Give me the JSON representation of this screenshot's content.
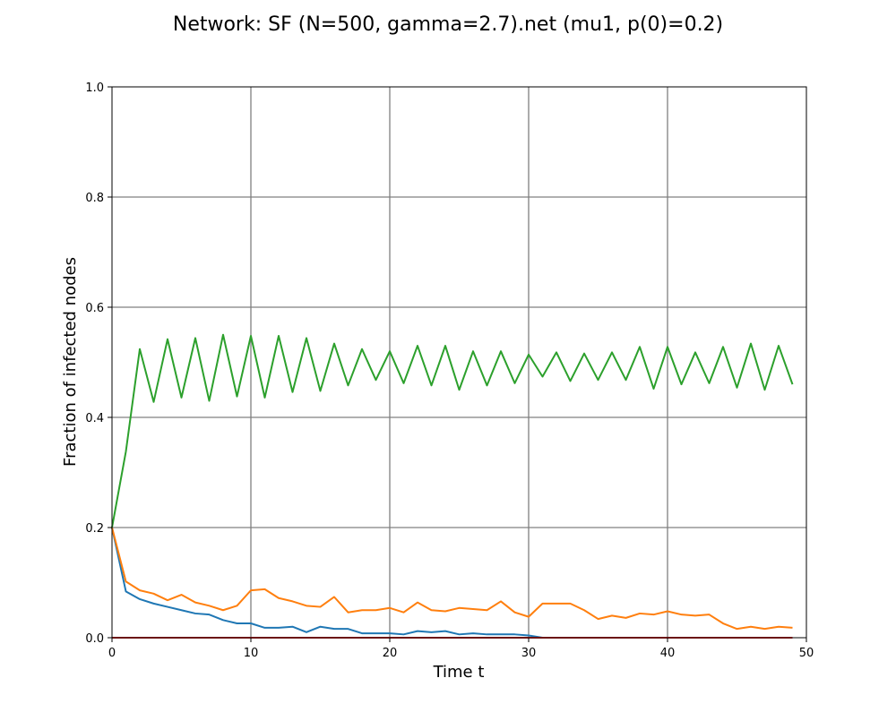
{
  "chart_data": {
    "type": "line",
    "title": "Network: SF (N=500, gamma=2.7).net (mu1, p(0)=0.2)",
    "xlabel": "Time t",
    "ylabel": "Fraction of infected nodes",
    "xlim": [
      0,
      50
    ],
    "ylim": [
      0,
      1.0
    ],
    "xticks": [
      0,
      10,
      20,
      30,
      40,
      50
    ],
    "yticks": [
      0.0,
      0.2,
      0.4,
      0.6,
      0.8,
      1.0
    ],
    "xtick_labels": [
      "0",
      "10",
      "20",
      "30",
      "40",
      "50"
    ],
    "ytick_labels": [
      "0.0",
      "0.2",
      "0.4",
      "0.6",
      "0.8",
      "1.0"
    ],
    "grid": true,
    "grid_color": "#808080",
    "x": [
      0,
      1,
      2,
      3,
      4,
      5,
      6,
      7,
      8,
      9,
      10,
      11,
      12,
      13,
      14,
      15,
      16,
      17,
      18,
      19,
      20,
      21,
      22,
      23,
      24,
      25,
      26,
      27,
      28,
      29,
      30,
      31,
      32,
      33,
      34,
      35,
      36,
      37,
      38,
      39,
      40,
      41,
      42,
      43,
      44,
      45,
      46,
      47,
      48,
      49
    ],
    "series": [
      {
        "color": "#1f77b4",
        "values": [
          0.2,
          0.084,
          0.07,
          0.062,
          0.056,
          0.05,
          0.044,
          0.042,
          0.032,
          0.026,
          0.026,
          0.018,
          0.018,
          0.02,
          0.01,
          0.02,
          0.016,
          0.016,
          0.008,
          0.008,
          0.008,
          0.006,
          0.012,
          0.01,
          0.012,
          0.006,
          0.008,
          0.006,
          0.006,
          0.006,
          0.004,
          0.0,
          0.0,
          0.0,
          0.0,
          0.0,
          0.0,
          0.0,
          0.0,
          0.0,
          0.0,
          0.0,
          0.0,
          0.0,
          0.0,
          0.0,
          0.0,
          0.0,
          0.0,
          0.0
        ]
      },
      {
        "color": "#ff7f0e",
        "values": [
          0.2,
          0.102,
          0.086,
          0.08,
          0.068,
          0.078,
          0.064,
          0.058,
          0.05,
          0.058,
          0.086,
          0.088,
          0.072,
          0.066,
          0.058,
          0.056,
          0.074,
          0.046,
          0.05,
          0.05,
          0.054,
          0.046,
          0.064,
          0.05,
          0.048,
          0.054,
          0.052,
          0.05,
          0.066,
          0.046,
          0.038,
          0.062,
          0.062,
          0.062,
          0.05,
          0.034,
          0.04,
          0.036,
          0.044,
          0.042,
          0.048,
          0.042,
          0.04,
          0.042,
          0.026,
          0.016,
          0.02,
          0.016,
          0.02,
          0.018
        ]
      },
      {
        "color": "#2ca02c",
        "values": [
          0.2,
          0.338,
          0.524,
          0.428,
          0.542,
          0.436,
          0.544,
          0.43,
          0.55,
          0.438,
          0.548,
          0.436,
          0.548,
          0.446,
          0.544,
          0.448,
          0.534,
          0.458,
          0.524,
          0.468,
          0.52,
          0.462,
          0.53,
          0.458,
          0.53,
          0.45,
          0.52,
          0.458,
          0.52,
          0.462,
          0.514,
          0.474,
          0.518,
          0.466,
          0.516,
          0.468,
          0.518,
          0.468,
          0.528,
          0.452,
          0.528,
          0.46,
          0.518,
          0.462,
          0.528,
          0.454,
          0.534,
          0.45,
          0.53,
          0.46
        ]
      },
      {
        "color": "#d62728",
        "values": [
          0.0,
          0.0,
          0.0,
          0.0,
          0.0,
          0.0,
          0.0,
          0.0,
          0.0,
          0.0,
          0.0,
          0.0,
          0.0,
          0.0,
          0.0,
          0.0,
          0.0,
          0.0,
          0.0,
          0.0,
          0.0,
          0.0,
          0.0,
          0.0,
          0.0,
          0.0,
          0.0,
          0.0,
          0.0,
          0.0,
          0.0,
          0.0,
          0.0,
          0.0,
          0.0,
          0.0,
          0.0,
          0.0,
          0.0,
          0.0,
          0.0,
          0.0,
          0.0,
          0.0,
          0.0,
          0.0,
          0.0,
          0.0,
          0.0,
          0.0
        ]
      }
    ]
  }
}
